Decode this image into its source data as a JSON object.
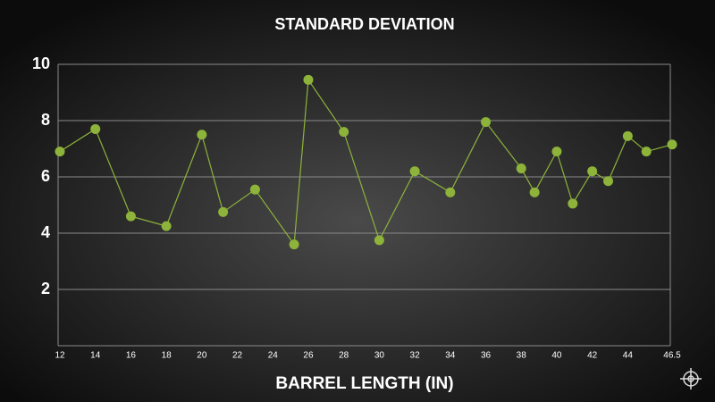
{
  "chart_data": {
    "type": "line",
    "title": "STANDARD DEVIATION",
    "x_label": "BARREL LENGTH (IN)",
    "x": [
      12,
      14,
      16,
      18,
      20,
      21.2,
      23,
      25.2,
      26,
      28,
      30,
      32,
      34,
      36,
      38,
      38.75,
      40,
      40.9,
      42,
      42.9,
      44,
      45.05,
      46.5
    ],
    "series": [
      {
        "name": "Standard deviation",
        "color": "#8db33a",
        "values": [
          6.9,
          7.7,
          4.6,
          4.25,
          7.5,
          4.75,
          5.55,
          3.6,
          9.45,
          7.6,
          3.75,
          6.2,
          5.45,
          7.95,
          6.3,
          5.45,
          6.9,
          5.05,
          6.2,
          5.85,
          7.45,
          6.9,
          7.15
        ]
      }
    ],
    "xlim": [
      12,
      46.5
    ],
    "xticks": [
      12,
      14,
      16,
      18,
      20,
      22,
      24,
      26,
      28,
      30,
      32,
      34,
      36,
      38,
      40,
      42,
      44,
      46.5
    ],
    "ylim": [
      0,
      10
    ],
    "yticks": [
      2,
      4,
      6,
      8,
      10
    ],
    "grid": true
  }
}
